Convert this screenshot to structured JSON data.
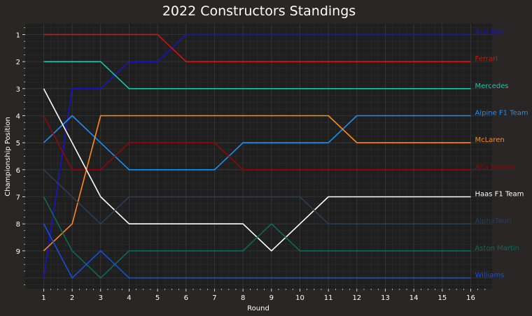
{
  "chart_data": {
    "type": "line",
    "title": "2022 Constructors Standings",
    "xlabel": "Round",
    "ylabel": "Championship Position",
    "x": [
      1,
      2,
      3,
      4,
      5,
      6,
      7,
      8,
      9,
      10,
      11,
      12,
      13,
      14,
      15,
      16
    ],
    "x_ticks": [
      "1",
      "2",
      "3",
      "4",
      "5",
      "6",
      "7",
      "8",
      "9",
      "10",
      "11",
      "12",
      "13",
      "14",
      "15",
      "16"
    ],
    "y_ticks": [
      "1",
      "2",
      "3",
      "4",
      "5",
      "6",
      "7",
      "8",
      "9"
    ],
    "xlim": [
      0.35,
      16.75
    ],
    "ylim": [
      10.4,
      0.6
    ],
    "y_inverted": true,
    "grid": true,
    "legend": "labels at line ends (right)",
    "series": [
      {
        "name": "Red Bull",
        "color": "#1a14c8",
        "values": [
          10,
          3,
          3,
          2,
          2,
          1,
          1,
          1,
          1,
          1,
          1,
          1,
          1,
          1,
          1,
          1
        ]
      },
      {
        "name": "Ferrari",
        "color": "#d2160e",
        "values": [
          1,
          1,
          1,
          1,
          1,
          2,
          2,
          2,
          2,
          2,
          2,
          2,
          2,
          2,
          2,
          2
        ]
      },
      {
        "name": "Mercedes",
        "color": "#17c7ab",
        "values": [
          2,
          2,
          2,
          3,
          3,
          3,
          3,
          3,
          3,
          3,
          3,
          3,
          3,
          3,
          3,
          3
        ]
      },
      {
        "name": "Alpine F1 Team",
        "color": "#1f8ff0",
        "values": [
          5,
          4,
          5,
          6,
          6,
          6,
          6,
          5,
          5,
          5,
          5,
          4,
          4,
          4,
          4,
          4
        ]
      },
      {
        "name": "McLaren",
        "color": "#ff8a14",
        "values": [
          9,
          8,
          4,
          4,
          4,
          4,
          4,
          4,
          4,
          4,
          4,
          5,
          5,
          5,
          5,
          5
        ]
      },
      {
        "name": "Alfa Romeo",
        "color": "#8c0a0a",
        "values": [
          4,
          6,
          6,
          5,
          5,
          5,
          5,
          6,
          6,
          6,
          6,
          6,
          6,
          6,
          6,
          6
        ]
      },
      {
        "name": "Haas F1 Team",
        "color": "#ffffff",
        "values": [
          3,
          5,
          7,
          8,
          8,
          8,
          8,
          8,
          9,
          8,
          7,
          7,
          7,
          7,
          7,
          7
        ]
      },
      {
        "name": "AlphaTauri",
        "color": "#2b3e58",
        "values": [
          6,
          7,
          8,
          7,
          7,
          7,
          7,
          7,
          7,
          7,
          8,
          8,
          8,
          8,
          8,
          8
        ]
      },
      {
        "name": "Aston Martin",
        "color": "#0c6b5a",
        "values": [
          7,
          9,
          10,
          9,
          9,
          9,
          9,
          9,
          8,
          9,
          9,
          9,
          9,
          9,
          9,
          9
        ]
      },
      {
        "name": "Williams",
        "color": "#1450e0",
        "values": [
          8,
          10,
          9,
          10,
          10,
          10,
          10,
          10,
          10,
          10,
          10,
          10,
          10,
          10,
          10,
          10
        ]
      }
    ]
  },
  "colors": {
    "figure_bg": "#292625",
    "plot_bg": "#1f1f1f",
    "grid_major": "#3a3a3a",
    "grid_minor": "#2d2d2d",
    "text": "#ffffff"
  }
}
